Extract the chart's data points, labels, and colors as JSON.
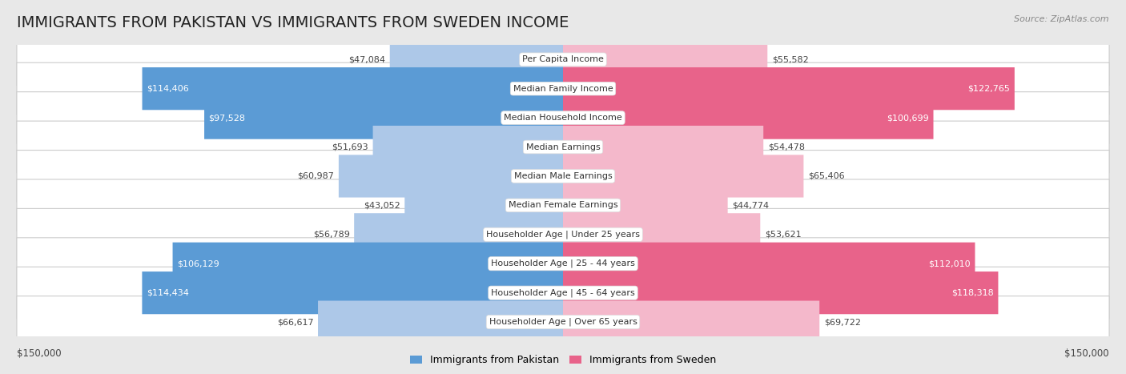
{
  "title": "IMMIGRANTS FROM PAKISTAN VS IMMIGRANTS FROM SWEDEN INCOME",
  "source": "Source: ZipAtlas.com",
  "categories": [
    "Per Capita Income",
    "Median Family Income",
    "Median Household Income",
    "Median Earnings",
    "Median Male Earnings",
    "Median Female Earnings",
    "Householder Age | Under 25 years",
    "Householder Age | 25 - 44 years",
    "Householder Age | 45 - 64 years",
    "Householder Age | Over 65 years"
  ],
  "pakistan_values": [
    47084,
    114406,
    97528,
    51693,
    60987,
    43052,
    56789,
    106129,
    114434,
    66617
  ],
  "sweden_values": [
    55582,
    122765,
    100699,
    54478,
    65406,
    44774,
    53621,
    112010,
    118318,
    69722
  ],
  "pakistan_labels": [
    "$47,084",
    "$114,406",
    "$97,528",
    "$51,693",
    "$60,987",
    "$43,052",
    "$56,789",
    "$106,129",
    "$114,434",
    "$66,617"
  ],
  "sweden_labels": [
    "$55,582",
    "$122,765",
    "$100,699",
    "$54,478",
    "$65,406",
    "$44,774",
    "$53,621",
    "$112,010",
    "$118,318",
    "$69,722"
  ],
  "pakistan_color_light": "#adc8e8",
  "pakistan_color_dark": "#5b9bd5",
  "sweden_color_light": "#f4b8cb",
  "sweden_color_dark": "#e8638a",
  "max_value": 150000,
  "legend_pakistan": "Immigrants from Pakistan",
  "legend_sweden": "Immigrants from Sweden",
  "background_color": "#e8e8e8",
  "row_bg_color": "#ffffff",
  "title_fontsize": 14,
  "label_fontsize": 8,
  "category_fontsize": 8,
  "dark_threshold": 80000
}
